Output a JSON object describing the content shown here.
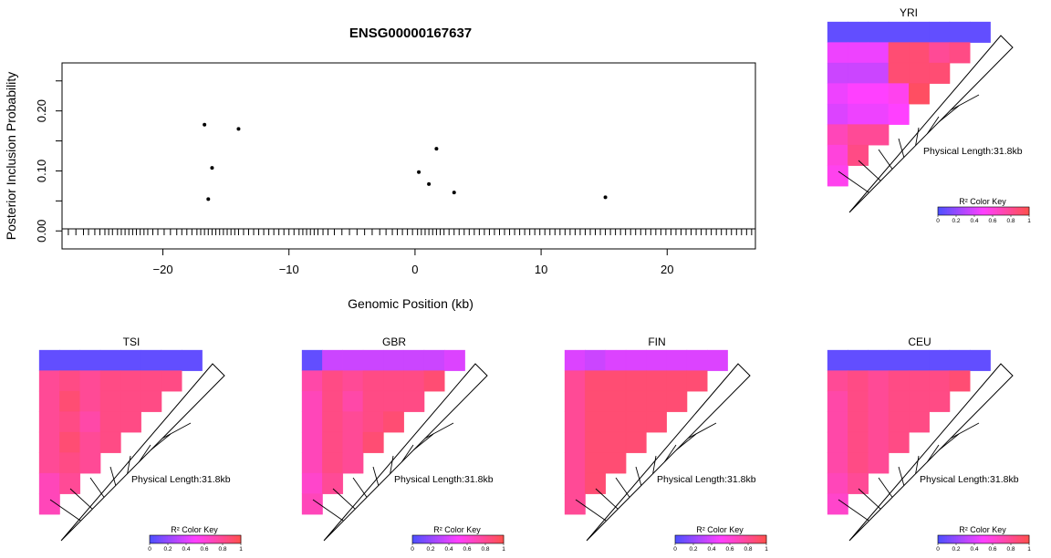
{
  "chart_data": [
    {
      "type": "scatter",
      "title": "ENSG00000167637",
      "xlabel": "Genomic Position (kb)",
      "ylabel": "Posterior Inclusion Probability",
      "xlim": [
        -28,
        27
      ],
      "ylim": [
        -0.03,
        0.28
      ],
      "xticks": [
        -20,
        -10,
        0,
        10,
        20
      ],
      "yticks": [
        0.0,
        0.1,
        0.2
      ],
      "xtick_labels": [
        "−20",
        "−10",
        "0",
        "10",
        "20"
      ],
      "ytick_labels": [
        "0.00",
        "0.10",
        "0.20"
      ],
      "points": [
        {
          "x": -16.7,
          "y": 0.177
        },
        {
          "x": -16.1,
          "y": 0.105
        },
        {
          "x": -16.4,
          "y": 0.053
        },
        {
          "x": -14.0,
          "y": 0.17
        },
        {
          "x": 0.3,
          "y": 0.098
        },
        {
          "x": 1.1,
          "y": 0.078
        },
        {
          "x": 1.7,
          "y": 0.137
        },
        {
          "x": 3.1,
          "y": 0.064
        },
        {
          "x": 15.1,
          "y": 0.056
        }
      ],
      "rug": [
        -27.5,
        -26.9,
        -26.3,
        -25.9,
        -25.4,
        -25.0,
        -24.6,
        -24.3,
        -24.0,
        -23.6,
        -23.3,
        -23.0,
        -22.7,
        -22.4,
        -22.1,
        -21.8,
        -21.5,
        -21.2,
        -20.8,
        -20.4,
        -19.9,
        -19.4,
        -18.9,
        -18.5,
        -18.1,
        -17.7,
        -17.3,
        -17.0,
        -16.7,
        -16.4,
        -16.1,
        -15.8,
        -15.5,
        -15.2,
        -14.9,
        -14.6,
        -14.3,
        -14.0,
        -13.6,
        -13.2,
        -12.8,
        -12.4,
        -12.0,
        -11.6,
        -11.2,
        -10.8,
        -10.4,
        -10.0,
        -9.6,
        -9.2,
        -8.9,
        -8.6,
        -8.3,
        -8.0,
        -7.7,
        -7.3,
        -6.9,
        -6.4,
        -5.8,
        -5.2,
        -4.6,
        -4.0,
        -3.4,
        -2.8,
        -2.3,
        -1.8,
        -1.4,
        -1.0,
        -0.6,
        -0.2,
        0.2,
        0.5,
        0.8,
        1.1,
        1.4,
        1.7,
        2.0,
        2.3,
        2.7,
        3.1,
        3.5,
        3.9,
        4.3,
        4.7,
        5.1,
        5.5,
        5.9,
        6.3,
        6.7,
        7.1,
        7.5,
        7.9,
        8.3,
        8.7,
        9.1,
        9.5,
        9.9,
        10.3,
        10.7,
        11.1,
        11.5,
        11.9,
        12.3,
        12.7,
        13.1,
        13.5,
        13.9,
        14.3,
        14.7,
        15.1,
        15.5,
        15.9,
        16.3,
        16.7,
        17.1,
        17.5,
        17.9,
        18.3,
        18.7,
        19.1,
        19.5,
        19.9,
        20.3,
        20.7,
        21.1,
        21.5,
        21.9,
        22.3,
        22.7,
        23.1,
        23.5,
        23.9,
        24.3,
        24.7,
        25.1,
        25.5,
        25.9,
        26.3,
        26.7
      ]
    },
    {
      "type": "heatmap",
      "title": "YRI",
      "length_label": "Physical Length:31.8kb",
      "key_label": "R² Color Key",
      "key_ticks": [
        "0",
        "0.2",
        "0.4",
        "0.6",
        "0.8",
        "1"
      ],
      "row_lengths": [
        8,
        7,
        6,
        5,
        4,
        3,
        2,
        1
      ],
      "r2": [
        [
          0.05,
          0.05,
          0.05,
          0.05,
          0.05,
          0.05,
          0.05,
          0.05
        ],
        [
          0.45,
          0.45,
          0.45,
          0.9,
          0.9,
          0.8,
          0.85
        ],
        [
          0.35,
          0.35,
          0.35,
          0.9,
          0.9,
          0.9
        ],
        [
          0.45,
          0.5,
          0.5,
          0.55,
          0.95
        ],
        [
          0.4,
          0.45,
          0.45,
          0.5
        ],
        [
          0.7,
          0.8,
          0.8
        ],
        [
          0.6,
          0.85
        ],
        [
          0.55
        ]
      ]
    },
    {
      "type": "heatmap",
      "title": "TSI",
      "length_label": "Physical Length:31.8kb",
      "key_label": "R² Color Key",
      "key_ticks": [
        "0",
        "0.2",
        "0.4",
        "0.6",
        "0.8",
        "1"
      ],
      "row_lengths": [
        8,
        7,
        6,
        5,
        4,
        3,
        2,
        1
      ],
      "r2": [
        [
          0.05,
          0.05,
          0.05,
          0.05,
          0.05,
          0.05,
          0.05,
          0.05
        ],
        [
          0.8,
          0.85,
          0.8,
          0.85,
          0.85,
          0.85,
          0.85
        ],
        [
          0.8,
          0.9,
          0.8,
          0.85,
          0.85,
          0.85
        ],
        [
          0.8,
          0.85,
          0.75,
          0.85,
          0.85
        ],
        [
          0.8,
          0.9,
          0.8,
          0.85
        ],
        [
          0.8,
          0.85,
          0.8
        ],
        [
          0.7,
          0.8
        ],
        [
          0.7
        ]
      ]
    },
    {
      "type": "heatmap",
      "title": "GBR",
      "length_label": "Physical Length:31.8kb",
      "key_label": "R² Color Key",
      "key_ticks": [
        "0",
        "0.2",
        "0.4",
        "0.6",
        "0.8",
        "1"
      ],
      "row_lengths": [
        8,
        7,
        6,
        5,
        4,
        3,
        2,
        1
      ],
      "r2": [
        [
          0.05,
          0.35,
          0.35,
          0.35,
          0.35,
          0.35,
          0.35,
          0.4
        ],
        [
          0.75,
          0.85,
          0.8,
          0.85,
          0.85,
          0.85,
          0.9
        ],
        [
          0.7,
          0.85,
          0.75,
          0.85,
          0.85,
          0.85
        ],
        [
          0.7,
          0.85,
          0.8,
          0.85,
          0.9
        ],
        [
          0.7,
          0.85,
          0.8,
          0.9
        ],
        [
          0.7,
          0.85,
          0.8
        ],
        [
          0.65,
          0.8
        ],
        [
          0.7
        ]
      ]
    },
    {
      "type": "heatmap",
      "title": "FIN",
      "length_label": "Physical Length:31.8kb",
      "key_label": "R² Color Key",
      "key_ticks": [
        "0",
        "0.2",
        "0.4",
        "0.6",
        "0.8",
        "1"
      ],
      "row_lengths": [
        8,
        7,
        6,
        5,
        4,
        3,
        2,
        1
      ],
      "r2": [
        [
          0.4,
          0.35,
          0.4,
          0.4,
          0.4,
          0.4,
          0.4,
          0.4
        ],
        [
          0.8,
          0.9,
          0.9,
          0.9,
          0.9,
          0.9,
          0.9
        ],
        [
          0.8,
          0.9,
          0.9,
          0.9,
          0.9,
          0.9
        ],
        [
          0.8,
          0.9,
          0.9,
          0.9,
          0.9
        ],
        [
          0.8,
          0.9,
          0.9,
          0.9
        ],
        [
          0.8,
          0.9,
          0.9
        ],
        [
          0.8,
          0.9
        ],
        [
          0.8
        ]
      ]
    },
    {
      "type": "heatmap",
      "title": "CEU",
      "length_label": "Physical Length:31.8kb",
      "key_label": "R² Color Key",
      "key_ticks": [
        "0",
        "0.2",
        "0.4",
        "0.6",
        "0.8",
        "1"
      ],
      "row_lengths": [
        8,
        7,
        6,
        5,
        4,
        3,
        2,
        1
      ],
      "r2": [
        [
          0.05,
          0.05,
          0.05,
          0.05,
          0.05,
          0.05,
          0.05,
          0.05
        ],
        [
          0.8,
          0.85,
          0.8,
          0.85,
          0.85,
          0.85,
          0.9
        ],
        [
          0.75,
          0.85,
          0.8,
          0.85,
          0.85,
          0.85
        ],
        [
          0.75,
          0.85,
          0.8,
          0.85,
          0.85
        ],
        [
          0.75,
          0.85,
          0.8,
          0.85
        ],
        [
          0.75,
          0.85,
          0.8
        ],
        [
          0.7,
          0.8
        ],
        [
          0.65
        ]
      ]
    }
  ]
}
